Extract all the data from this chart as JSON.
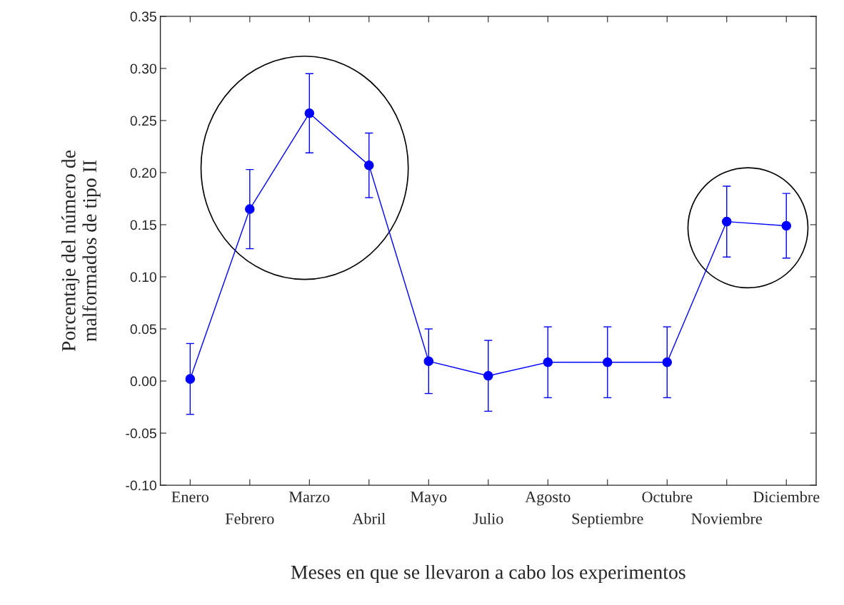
{
  "chart_data": {
    "type": "line",
    "xlabel": "Meses en que se llevaron a cabo los experimentos",
    "ylabel": "Porcentaje del número de\nmalformados de tipo II",
    "categories": [
      "Enero",
      "Febrero",
      "Marzo",
      "Abril",
      "Mayo",
      "Julio",
      "Agosto",
      "Septiembre",
      "Octubre",
      "Noviembre",
      "Diciembre"
    ],
    "series": [
      {
        "color": "#0000ff",
        "values": [
          0.002,
          0.165,
          0.257,
          0.207,
          0.019,
          0.005,
          0.018,
          0.018,
          0.018,
          0.153,
          0.149
        ],
        "errors": [
          0.034,
          0.038,
          0.038,
          0.031,
          0.031,
          0.034,
          0.034,
          0.034,
          0.034,
          0.034,
          0.031
        ]
      }
    ],
    "ylim": [
      -0.1,
      0.35
    ],
    "yticks": [
      {
        "value": -0.1,
        "label": "-0.10"
      },
      {
        "value": -0.05,
        "label": "-0.05"
      },
      {
        "value": 0,
        "label": "0.00"
      },
      {
        "value": 0.05,
        "label": "0.05"
      },
      {
        "value": 0.1,
        "label": "0.10"
      },
      {
        "value": 0.15,
        "label": "0.15"
      },
      {
        "value": 0.2,
        "label": "0.20"
      },
      {
        "value": 0.25,
        "label": "0.25"
      },
      {
        "value": 0.3,
        "label": "0.30"
      },
      {
        "value": 0.35,
        "label": "0.35"
      }
    ],
    "marker": "circle",
    "line_style": "solid",
    "grid": false,
    "legend": false
  }
}
